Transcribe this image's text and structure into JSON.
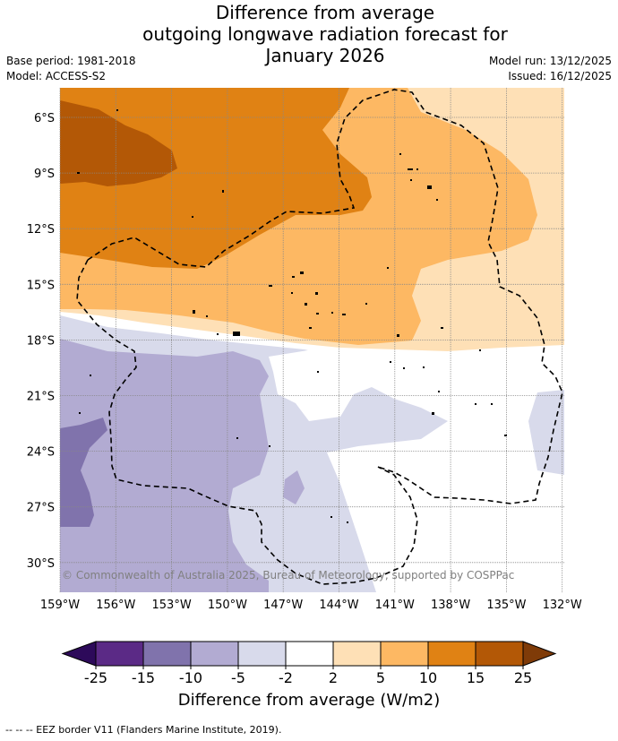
{
  "title": {
    "line1": "Difference from average",
    "line2": "outgoing longwave radiation forecast for",
    "line3": "January 2026"
  },
  "meta": {
    "base_period": "Base period: 1981-2018",
    "model": "Model: ACCESS-S2",
    "model_run": "Model run: 13/12/2025",
    "issued": "Issued: 16/12/2025"
  },
  "map": {
    "lat_ticks": [
      "6°S",
      "9°S",
      "12°S",
      "15°S",
      "18°S",
      "21°S",
      "24°S",
      "27°S",
      "30°S"
    ],
    "lon_ticks": [
      "159°W",
      "156°W",
      "153°W",
      "150°W",
      "147°W",
      "144°W",
      "141°W",
      "138°W",
      "135°W",
      "132°W"
    ],
    "copyright": "© Commonwealth of Australia 2025, Bureau of Meteorology, supported by COSPPac"
  },
  "colorbar": {
    "ticks": [
      "-25",
      "-15",
      "-10",
      "-5",
      "-2",
      "2",
      "5",
      "10",
      "15",
      "25"
    ],
    "label": "Difference from average (W/m2)",
    "colors": [
      "#2d0a5a",
      "#5b2a86",
      "#8073ac",
      "#b2abd2",
      "#d8daeb",
      "#ffffff",
      "#fee0b6",
      "#fdb863",
      "#e08214",
      "#b35806",
      "#7f3b08"
    ]
  },
  "legend": {
    "eez": "--  --  -- EEZ border V11 (Flanders Marine Institute, 2019)."
  }
}
